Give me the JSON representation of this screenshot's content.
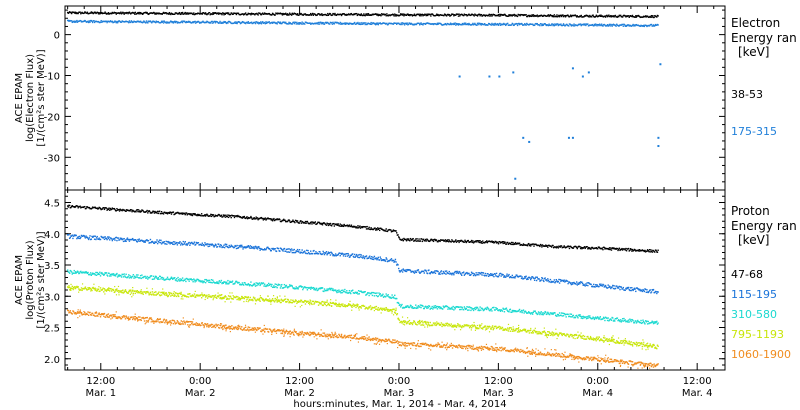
{
  "figure": {
    "xlabel": "hours:minutes, Mar. 1, 2014 - Mar. 4, 2014",
    "x_ticks": [
      {
        "t": 0.5,
        "time": "12:00",
        "date": "Mar. 1"
      },
      {
        "t": 1.0,
        "time": "0:00",
        "date": "Mar. 2"
      },
      {
        "t": 1.5,
        "time": "12:00",
        "date": "Mar. 2"
      },
      {
        "t": 2.0,
        "time": "0:00",
        "date": "Mar. 3"
      },
      {
        "t": 2.5,
        "time": "12:00",
        "date": "Mar. 3"
      },
      {
        "t": 3.0,
        "time": "0:00",
        "date": "Mar. 4"
      },
      {
        "t": 3.5,
        "time": "12:00",
        "date": "Mar. 4"
      }
    ],
    "xlim_days": [
      0.32,
      3.64
    ]
  },
  "chart_data": [
    {
      "type": "scatter",
      "ylabel_lines": [
        "ACE EPAM",
        "log(Electron Flux)",
        "[1/(cm²s ster MeV)]"
      ],
      "ylim": [
        -38,
        7
      ],
      "yticks": [
        0,
        -10,
        -20,
        -30
      ],
      "legend_title_lines": [
        "Electron",
        "Energy ran",
        "[keV]"
      ],
      "series": [
        {
          "name": "38-53",
          "color": "#000000",
          "points": [
            [
              0.33,
              5.5
            ],
            [
              1.0,
              5.3
            ],
            [
              2.0,
              5.0
            ],
            [
              2.5,
              4.9
            ],
            [
              3.0,
              4.7
            ],
            [
              3.3,
              4.6
            ]
          ]
        },
        {
          "name": "175-315",
          "color": "#1f7fd9",
          "points": [
            [
              0.33,
              3.4
            ],
            [
              1.0,
              3.2
            ],
            [
              1.5,
              3.0
            ],
            [
              2.0,
              2.8
            ],
            [
              2.5,
              2.7
            ],
            [
              3.0,
              2.5
            ],
            [
              3.3,
              2.4
            ]
          ]
        }
      ],
      "outliers": [
        [
          2.3,
          -10
        ],
        [
          2.45,
          -10
        ],
        [
          2.5,
          -10
        ],
        [
          2.57,
          -9
        ],
        [
          2.87,
          -8
        ],
        [
          2.62,
          -25
        ],
        [
          2.65,
          -26
        ],
        [
          2.85,
          -25
        ],
        [
          2.87,
          -25
        ],
        [
          3.3,
          -25
        ],
        [
          3.3,
          -27
        ],
        [
          2.58,
          -35
        ],
        [
          3.31,
          -7
        ],
        [
          2.92,
          -10
        ],
        [
          2.95,
          -9
        ]
      ]
    },
    {
      "type": "scatter",
      "ylabel_lines": [
        "ACE EPAM",
        "log(Proton Flux)",
        "[1/(cm²s ster MeV)]"
      ],
      "ylim": [
        1.82,
        4.7
      ],
      "yticks": [
        4.5,
        4.0,
        3.5,
        3.0,
        2.5,
        2.0
      ],
      "legend_title_lines": [
        "Proton",
        "Energy ran",
        "[keV]"
      ],
      "series": [
        {
          "name": "47-68",
          "color": "#000000",
          "points": [
            [
              0.33,
              4.45
            ],
            [
              0.8,
              4.35
            ],
            [
              1.2,
              4.28
            ],
            [
              1.5,
              4.2
            ],
            [
              1.8,
              4.12
            ],
            [
              1.98,
              4.05
            ],
            [
              2.0,
              3.92
            ],
            [
              2.5,
              3.87
            ],
            [
              2.8,
              3.8
            ],
            [
              3.0,
              3.78
            ],
            [
              3.3,
              3.73
            ]
          ]
        },
        {
          "name": "115-195",
          "color": "#1a73d9",
          "points": [
            [
              0.33,
              3.97
            ],
            [
              0.8,
              3.88
            ],
            [
              1.2,
              3.8
            ],
            [
              1.5,
              3.73
            ],
            [
              1.8,
              3.65
            ],
            [
              1.98,
              3.58
            ],
            [
              2.0,
              3.42
            ],
            [
              2.5,
              3.35
            ],
            [
              2.8,
              3.25
            ],
            [
              3.0,
              3.18
            ],
            [
              3.3,
              3.08
            ]
          ]
        },
        {
          "name": "310-580",
          "color": "#1ad9d0",
          "points": [
            [
              0.33,
              3.4
            ],
            [
              0.8,
              3.3
            ],
            [
              1.2,
              3.22
            ],
            [
              1.5,
              3.15
            ],
            [
              1.8,
              3.07
            ],
            [
              1.98,
              3.0
            ],
            [
              2.0,
              2.85
            ],
            [
              2.5,
              2.8
            ],
            [
              2.8,
              2.72
            ],
            [
              3.0,
              2.66
            ],
            [
              3.3,
              2.58
            ]
          ]
        },
        {
          "name": "795-1193",
          "color": "#c8e60a",
          "points": [
            [
              0.33,
              3.15
            ],
            [
              0.8,
              3.05
            ],
            [
              1.2,
              2.98
            ],
            [
              1.5,
              2.92
            ],
            [
              1.8,
              2.85
            ],
            [
              1.98,
              2.78
            ],
            [
              2.0,
              2.6
            ],
            [
              2.5,
              2.5
            ],
            [
              2.8,
              2.4
            ],
            [
              3.0,
              2.33
            ],
            [
              3.3,
              2.2
            ]
          ]
        },
        {
          "name": "1060-1900",
          "color": "#f08c1e",
          "points": [
            [
              0.33,
              2.76
            ],
            [
              0.8,
              2.62
            ],
            [
              1.2,
              2.5
            ],
            [
              1.5,
              2.42
            ],
            [
              1.8,
              2.35
            ],
            [
              1.98,
              2.28
            ],
            [
              2.0,
              2.25
            ],
            [
              2.5,
              2.17
            ],
            [
              2.8,
              2.07
            ],
            [
              3.0,
              2.0
            ],
            [
              3.3,
              1.9
            ]
          ]
        }
      ]
    }
  ]
}
